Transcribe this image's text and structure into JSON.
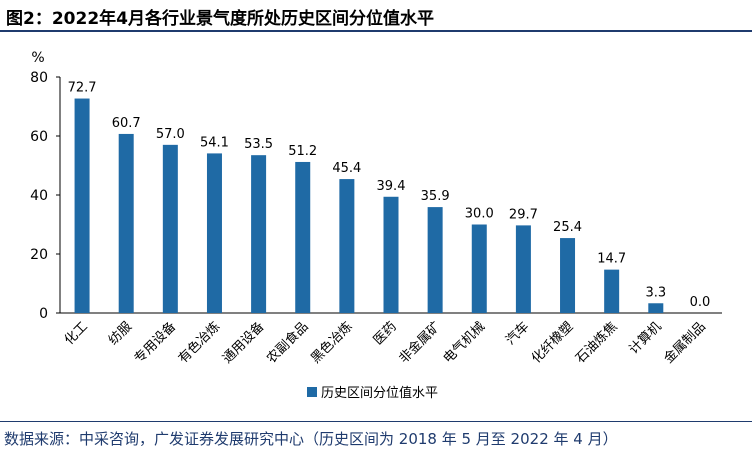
{
  "title": "图2：2022年4月各行业景气度所处历史区间分位值水平",
  "source": "数据来源：中采咨询，广发证券发展研究中心（历史区间为 2018 年 5 月至 2022 年 4 月）",
  "chart_data": {
    "type": "bar",
    "ylabel": "%",
    "ylim": [
      0,
      80
    ],
    "yticks": [
      0,
      20,
      40,
      60,
      80
    ],
    "categories": [
      "化工",
      "纺服",
      "专用设备",
      "有色冶炼",
      "通用设备",
      "农副食品",
      "黑色冶炼",
      "医药",
      "非金属矿",
      "电气机械",
      "汽车",
      "化纤橡塑",
      "石油炼焦",
      "计算机",
      "金属制品"
    ],
    "series": [
      {
        "name": "历史区间分位值水平",
        "values": [
          72.7,
          60.7,
          57.0,
          54.1,
          53.5,
          51.2,
          45.4,
          39.4,
          35.9,
          30.0,
          29.7,
          25.4,
          14.7,
          3.3,
          0.0
        ],
        "labels": [
          "72.7",
          "60.7",
          "57.0",
          "54.1",
          "53.5",
          "51.2",
          "45.4",
          "39.4",
          "35.9",
          "30.0",
          "29.7",
          "25.4",
          "14.7",
          "3.3",
          "0.0"
        ],
        "color": "#1f6aa5"
      }
    ],
    "legend": "bottom",
    "grid": false
  }
}
